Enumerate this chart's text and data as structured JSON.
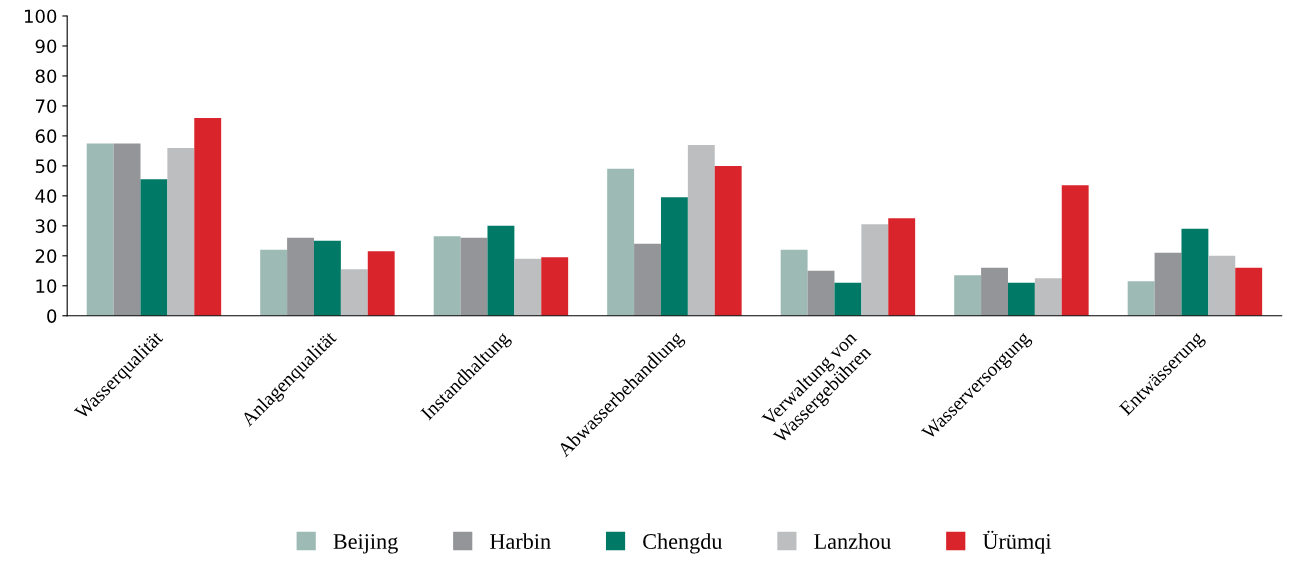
{
  "chart_data": {
    "type": "bar",
    "categories": [
      "Wasserqualität",
      "Anlagenqualität",
      "Instandhaltung",
      "Abwasserbehandlung",
      "Verwaltung von\nWassergebühren",
      "Wasserversorgung",
      "Entwässerung"
    ],
    "series": [
      {
        "name": "Beijing",
        "color": "#9dbab5",
        "values": [
          57.5,
          22,
          26.5,
          49,
          22,
          13.5,
          11.5
        ]
      },
      {
        "name": "Harbin",
        "color": "#939598",
        "values": [
          57.5,
          26,
          26,
          24,
          15,
          16,
          21
        ]
      },
      {
        "name": "Chengdu",
        "color": "#007a66",
        "values": [
          45.5,
          25,
          30,
          39.5,
          11,
          11,
          29
        ]
      },
      {
        "name": "Lanzhou",
        "color": "#bcbec0",
        "values": [
          56,
          15.5,
          19,
          57,
          30.5,
          12.5,
          20
        ]
      },
      {
        "name": "Ürümqi",
        "color": "#d9242b",
        "values": [
          66,
          21.5,
          19.5,
          50,
          32.5,
          43.5,
          16
        ]
      }
    ],
    "ylim": [
      0,
      100
    ],
    "yticks": [
      0,
      10,
      20,
      30,
      40,
      50,
      60,
      70,
      80,
      90,
      100
    ],
    "legend": "bottom"
  }
}
